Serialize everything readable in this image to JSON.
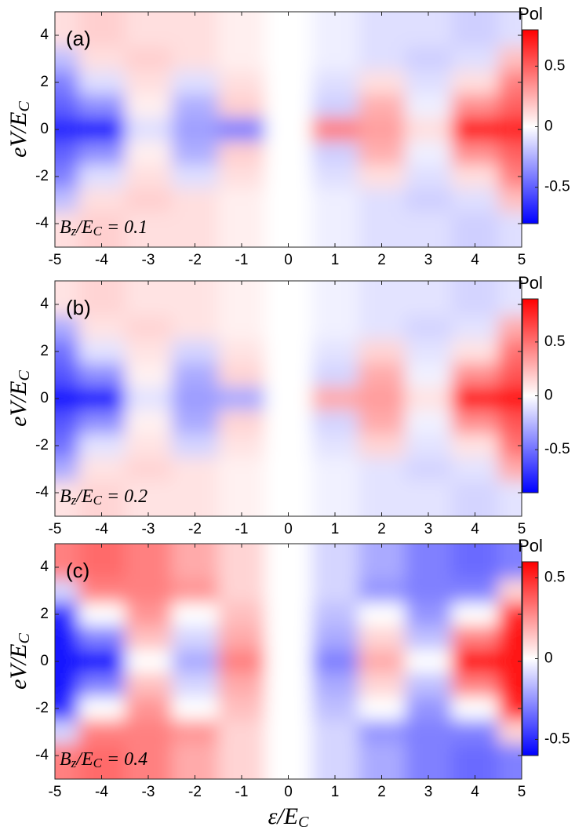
{
  "chart_data": [
    {
      "type": "heatmap",
      "panel_label": "(a)",
      "annotation_parts": [
        "B",
        "z",
        "/E",
        "C",
        " = 0.1"
      ],
      "ylabel_parts": [
        "eV/E",
        "C"
      ],
      "colorbar_title": "Pol",
      "x": [
        -5,
        -4,
        -3,
        -2,
        -1,
        0,
        1,
        2,
        3,
        4,
        5
      ],
      "y": [
        4,
        3,
        2,
        1,
        0,
        -1,
        -2,
        -3,
        -4
      ],
      "z": [
        [
          0.1,
          0.15,
          0.1,
          0.1,
          0.05,
          0,
          -0.05,
          -0.1,
          -0.1,
          -0.15,
          -0.1
        ],
        [
          -0.2,
          0.1,
          0.15,
          0.1,
          0.05,
          0,
          -0.05,
          -0.1,
          -0.15,
          -0.1,
          0.2
        ],
        [
          -0.4,
          -0.1,
          0.1,
          -0.1,
          0.1,
          0,
          -0.1,
          0.1,
          -0.1,
          0.1,
          0.4
        ],
        [
          -0.5,
          -0.35,
          0.05,
          -0.25,
          0.15,
          0,
          -0.15,
          0.25,
          -0.05,
          0.35,
          0.5
        ],
        [
          -0.7,
          -0.75,
          -0.1,
          -0.3,
          -0.4,
          0,
          0.4,
          0.3,
          0.1,
          0.75,
          0.7
        ],
        [
          -0.5,
          -0.35,
          0.05,
          -0.25,
          0.15,
          0,
          -0.15,
          0.25,
          -0.05,
          0.35,
          0.5
        ],
        [
          -0.4,
          -0.1,
          0.1,
          -0.1,
          0.1,
          0,
          -0.1,
          0.1,
          -0.1,
          0.1,
          0.4
        ],
        [
          -0.2,
          0.1,
          0.15,
          0.1,
          0.05,
          0,
          -0.05,
          -0.1,
          -0.15,
          -0.1,
          0.2
        ],
        [
          0.1,
          0.15,
          0.1,
          0.1,
          0.05,
          0,
          -0.05,
          -0.1,
          -0.1,
          -0.15,
          -0.1
        ]
      ],
      "xlim": [
        -5,
        5
      ],
      "ylim": [
        -5,
        5
      ],
      "xticks": [
        -5,
        -4,
        -3,
        -2,
        -1,
        0,
        1,
        2,
        3,
        4,
        5
      ],
      "yticks": [
        -4,
        -2,
        0,
        2,
        4
      ],
      "clim": [
        -0.8,
        0.8
      ],
      "cticks": [
        -0.5,
        0,
        0.5
      ],
      "colors": [
        "#0000ff",
        "#ffffff",
        "#ff0000"
      ]
    },
    {
      "type": "heatmap",
      "panel_label": "(b)",
      "annotation_parts": [
        "B",
        "z",
        "/E",
        "C",
        " = 0.2"
      ],
      "ylabel_parts": [
        "eV/E",
        "C"
      ],
      "colorbar_title": "Pol",
      "x": [
        -5,
        -4,
        -3,
        -2,
        -1,
        0,
        1,
        2,
        3,
        4,
        5
      ],
      "y": [
        4,
        3,
        2,
        1,
        0,
        -1,
        -2,
        -3,
        -4
      ],
      "z": [
        [
          0.1,
          0.15,
          0.1,
          0.1,
          0.05,
          0,
          -0.05,
          -0.1,
          -0.1,
          -0.15,
          -0.1
        ],
        [
          -0.3,
          0.1,
          0.15,
          0.1,
          0.05,
          0,
          -0.05,
          -0.1,
          -0.15,
          -0.1,
          0.3
        ],
        [
          -0.5,
          -0.1,
          0.1,
          -0.15,
          0.1,
          0,
          -0.1,
          0.15,
          -0.1,
          0.1,
          0.5
        ],
        [
          -0.6,
          -0.4,
          0.05,
          -0.3,
          0.15,
          0,
          -0.15,
          0.3,
          -0.05,
          0.4,
          0.6
        ],
        [
          -0.85,
          -0.85,
          -0.1,
          -0.35,
          -0.3,
          0,
          0.3,
          0.35,
          0.1,
          0.85,
          0.85
        ],
        [
          -0.6,
          -0.4,
          0.05,
          -0.3,
          0.15,
          0,
          -0.15,
          0.3,
          -0.05,
          0.4,
          0.6
        ],
        [
          -0.5,
          -0.1,
          0.1,
          -0.15,
          0.1,
          0,
          -0.1,
          0.15,
          -0.1,
          0.1,
          0.5
        ],
        [
          -0.3,
          0.1,
          0.15,
          0.1,
          0.05,
          0,
          -0.05,
          -0.1,
          -0.15,
          -0.1,
          0.3
        ],
        [
          0.1,
          0.15,
          0.1,
          0.1,
          0.05,
          0,
          -0.05,
          -0.1,
          -0.1,
          -0.15,
          -0.1
        ]
      ],
      "xlim": [
        -5,
        5
      ],
      "ylim": [
        -5,
        5
      ],
      "xticks": [
        -5,
        -4,
        -3,
        -2,
        -1,
        0,
        1,
        2,
        3,
        4,
        5
      ],
      "yticks": [
        -4,
        -2,
        0,
        2,
        4
      ],
      "clim": [
        -0.9,
        0.9
      ],
      "cticks": [
        -0.5,
        0,
        0.5
      ],
      "colors": [
        "#0000ff",
        "#ffffff",
        "#ff0000"
      ]
    },
    {
      "type": "heatmap",
      "panel_label": "(c)",
      "annotation_parts": [
        "B",
        "z",
        "/E",
        "C",
        " = 0.4"
      ],
      "ylabel_parts": [
        "eV/E",
        "C"
      ],
      "xlabel_parts": [
        "ε/E",
        "C"
      ],
      "colorbar_title": "Pol",
      "x": [
        -5,
        -4,
        -3,
        -2,
        -1,
        0,
        1,
        2,
        3,
        4,
        5
      ],
      "y": [
        4,
        3,
        2,
        1,
        0,
        -1,
        -2,
        -3,
        -4
      ],
      "z": [
        [
          0.3,
          0.35,
          0.3,
          0.2,
          0.1,
          0,
          -0.1,
          -0.2,
          -0.3,
          -0.35,
          -0.3
        ],
        [
          -0.1,
          0.3,
          0.3,
          0.25,
          0.1,
          0,
          -0.1,
          -0.25,
          -0.3,
          -0.3,
          0.1
        ],
        [
          -0.5,
          0,
          0.25,
          0,
          0.15,
          0,
          -0.15,
          0,
          -0.25,
          0,
          0.5
        ],
        [
          -0.55,
          -0.3,
          0.15,
          -0.1,
          0.2,
          0,
          -0.2,
          0.1,
          -0.15,
          0.3,
          0.55
        ],
        [
          -0.55,
          -0.6,
          0,
          -0.2,
          0.3,
          0,
          -0.3,
          0.2,
          0,
          0.6,
          0.55
        ],
        [
          -0.55,
          -0.3,
          0.15,
          -0.1,
          0.2,
          0,
          -0.2,
          0.1,
          -0.15,
          0.3,
          0.55
        ],
        [
          -0.5,
          0,
          0.25,
          0,
          0.15,
          0,
          -0.15,
          0,
          -0.25,
          0,
          0.5
        ],
        [
          -0.1,
          0.3,
          0.3,
          0.25,
          0.1,
          0,
          -0.1,
          -0.25,
          -0.3,
          -0.3,
          0.1
        ],
        [
          0.3,
          0.35,
          0.3,
          0.2,
          0.1,
          0,
          -0.1,
          -0.2,
          -0.3,
          -0.35,
          -0.3
        ]
      ],
      "xlim": [
        -5,
        5
      ],
      "ylim": [
        -5,
        5
      ],
      "xticks": [
        -5,
        -4,
        -3,
        -2,
        -1,
        0,
        1,
        2,
        3,
        4,
        5
      ],
      "yticks": [
        -4,
        -2,
        0,
        2,
        4
      ],
      "clim": [
        -0.6,
        0.6
      ],
      "cticks": [
        -0.5,
        0,
        0.5
      ],
      "colors": [
        "#0000ff",
        "#ffffff",
        "#ff0000"
      ]
    }
  ]
}
